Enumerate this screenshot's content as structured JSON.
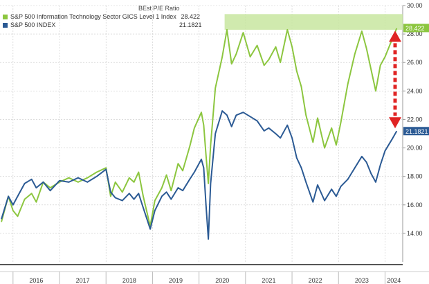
{
  "chart_data": {
    "type": "line",
    "title": "BEst P/E Ratio",
    "xlabel": "",
    "ylabel": "",
    "ylim": [
      12.0,
      30.0
    ],
    "yticks": [
      "14.00",
      "16.00",
      "18.00",
      "20.00",
      "22.00",
      "24.00",
      "26.00",
      "28.00",
      "30.00"
    ],
    "xticks": [
      "2016",
      "2017",
      "2018",
      "2019",
      "2020",
      "2021",
      "2022",
      "2023",
      "2024"
    ],
    "grid": true,
    "legend_position": "top-left",
    "series": [
      {
        "name": "S&P 500 Information Technology Sector GICS Level 1 Index",
        "last_value": "28.422",
        "color": "#8cc63f",
        "points": [
          [
            2015.75,
            14.8
          ],
          [
            2015.9,
            16.6
          ],
          [
            2016.0,
            15.6
          ],
          [
            2016.1,
            15.2
          ],
          [
            2016.25,
            16.4
          ],
          [
            2016.4,
            16.8
          ],
          [
            2016.5,
            16.2
          ],
          [
            2016.65,
            17.6
          ],
          [
            2016.8,
            17.2
          ],
          [
            2017.0,
            17.6
          ],
          [
            2017.2,
            17.9
          ],
          [
            2017.4,
            17.6
          ],
          [
            2017.6,
            17.9
          ],
          [
            2017.8,
            18.3
          ],
          [
            2018.0,
            18.6
          ],
          [
            2018.1,
            16.6
          ],
          [
            2018.2,
            17.6
          ],
          [
            2018.35,
            16.9
          ],
          [
            2018.5,
            17.9
          ],
          [
            2018.6,
            17.6
          ],
          [
            2018.7,
            18.3
          ],
          [
            2018.8,
            16.6
          ],
          [
            2018.95,
            14.5
          ],
          [
            2019.05,
            16.3
          ],
          [
            2019.2,
            17.2
          ],
          [
            2019.3,
            18.1
          ],
          [
            2019.4,
            17.0
          ],
          [
            2019.55,
            18.9
          ],
          [
            2019.65,
            18.4
          ],
          [
            2019.8,
            20.1
          ],
          [
            2019.9,
            21.4
          ],
          [
            2020.05,
            22.5
          ],
          [
            2020.1,
            21.6
          ],
          [
            2020.15,
            19.5
          ],
          [
            2020.2,
            17.5
          ],
          [
            2020.25,
            20.2
          ],
          [
            2020.35,
            24.2
          ],
          [
            2020.5,
            26.4
          ],
          [
            2020.6,
            28.3
          ],
          [
            2020.7,
            25.9
          ],
          [
            2020.8,
            26.6
          ],
          [
            2020.95,
            28.1
          ],
          [
            2021.1,
            26.4
          ],
          [
            2021.25,
            27.2
          ],
          [
            2021.4,
            25.8
          ],
          [
            2021.5,
            26.2
          ],
          [
            2021.65,
            27.1
          ],
          [
            2021.75,
            26.0
          ],
          [
            2021.9,
            28.3
          ],
          [
            2022.0,
            27.1
          ],
          [
            2022.1,
            25.4
          ],
          [
            2022.2,
            24.3
          ],
          [
            2022.3,
            22.3
          ],
          [
            2022.45,
            20.4
          ],
          [
            2022.55,
            22.1
          ],
          [
            2022.7,
            20.0
          ],
          [
            2022.85,
            21.4
          ],
          [
            2022.95,
            20.2
          ],
          [
            2023.05,
            21.8
          ],
          [
            2023.2,
            24.5
          ],
          [
            2023.35,
            26.6
          ],
          [
            2023.5,
            28.2
          ],
          [
            2023.6,
            27.0
          ],
          [
            2023.7,
            25.5
          ],
          [
            2023.8,
            24.0
          ],
          [
            2023.9,
            25.8
          ],
          [
            2024.0,
            26.4
          ],
          [
            2024.15,
            27.6
          ],
          [
            2024.25,
            28.4
          ]
        ]
      },
      {
        "name": "S&P 500 INDEX",
        "last_value": "21.1821",
        "color": "#2b5a94",
        "points": [
          [
            2015.75,
            15.0
          ],
          [
            2015.9,
            16.6
          ],
          [
            2016.0,
            16.0
          ],
          [
            2016.1,
            16.6
          ],
          [
            2016.25,
            17.5
          ],
          [
            2016.4,
            17.8
          ],
          [
            2016.5,
            17.2
          ],
          [
            2016.65,
            17.6
          ],
          [
            2016.8,
            17.0
          ],
          [
            2017.0,
            17.7
          ],
          [
            2017.2,
            17.6
          ],
          [
            2017.4,
            17.9
          ],
          [
            2017.6,
            17.6
          ],
          [
            2017.8,
            18.0
          ],
          [
            2018.0,
            18.5
          ],
          [
            2018.1,
            16.9
          ],
          [
            2018.2,
            16.5
          ],
          [
            2018.35,
            16.3
          ],
          [
            2018.5,
            16.8
          ],
          [
            2018.6,
            16.4
          ],
          [
            2018.7,
            16.8
          ],
          [
            2018.8,
            15.8
          ],
          [
            2018.95,
            14.3
          ],
          [
            2019.05,
            15.6
          ],
          [
            2019.2,
            16.6
          ],
          [
            2019.3,
            16.9
          ],
          [
            2019.4,
            16.4
          ],
          [
            2019.55,
            17.2
          ],
          [
            2019.65,
            17.0
          ],
          [
            2019.8,
            17.8
          ],
          [
            2019.9,
            18.3
          ],
          [
            2020.05,
            19.2
          ],
          [
            2020.1,
            18.6
          ],
          [
            2020.15,
            16.0
          ],
          [
            2020.2,
            13.6
          ],
          [
            2020.25,
            17.5
          ],
          [
            2020.35,
            21.0
          ],
          [
            2020.5,
            22.6
          ],
          [
            2020.6,
            22.3
          ],
          [
            2020.7,
            21.5
          ],
          [
            2020.8,
            22.3
          ],
          [
            2020.95,
            22.5
          ],
          [
            2021.1,
            22.2
          ],
          [
            2021.25,
            21.9
          ],
          [
            2021.4,
            21.2
          ],
          [
            2021.5,
            21.4
          ],
          [
            2021.65,
            21.0
          ],
          [
            2021.75,
            20.7
          ],
          [
            2021.9,
            21.6
          ],
          [
            2022.0,
            20.7
          ],
          [
            2022.1,
            19.3
          ],
          [
            2022.2,
            18.6
          ],
          [
            2022.3,
            17.6
          ],
          [
            2022.45,
            16.2
          ],
          [
            2022.55,
            17.4
          ],
          [
            2022.7,
            16.3
          ],
          [
            2022.85,
            17.1
          ],
          [
            2022.95,
            16.6
          ],
          [
            2023.05,
            17.3
          ],
          [
            2023.2,
            17.8
          ],
          [
            2023.35,
            18.6
          ],
          [
            2023.5,
            19.4
          ],
          [
            2023.6,
            19.0
          ],
          [
            2023.7,
            18.2
          ],
          [
            2023.8,
            17.6
          ],
          [
            2023.9,
            18.8
          ],
          [
            2024.0,
            19.8
          ],
          [
            2024.15,
            20.6
          ],
          [
            2024.25,
            21.18
          ]
        ]
      }
    ]
  },
  "colors": {
    "highlight_band": "#c8e6a0",
    "arrow": "#e02424",
    "grid": "#c9c9c9",
    "label_text": "#ffffff",
    "axis_text": "#333333"
  }
}
